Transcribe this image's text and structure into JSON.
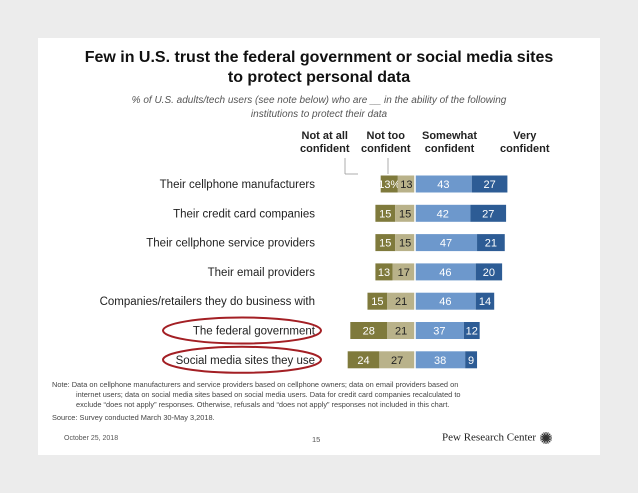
{
  "header": {
    "title_line1": "Few in U.S. trust the federal government or social media sites",
    "title_line2": "to protect personal data",
    "subtitle_line1": "% of U.S. adults/tech users (see note below) who are __ in the ability of the following",
    "subtitle_line2": "institutions to protect their data"
  },
  "columns": {
    "not_at_all_1": "Not at all",
    "not_at_all_2": "confident",
    "not_too_1": "Not too",
    "not_too_2": "confident",
    "somewhat_1": "Somewhat",
    "somewhat_2": "confident",
    "very_1": "Very",
    "very_2": "confident"
  },
  "chart_data": {
    "type": "bar",
    "orientation": "horizontal-diverging",
    "title": "Few in U.S. trust the federal government or social media sites to protect personal data",
    "categories": [
      "Their cellphone manufacturers",
      "Their credit card companies",
      "Their cellphone service providers",
      "Their email providers",
      "Companies/retailers they do business with",
      "The federal government",
      "Social media sites they use"
    ],
    "series": [
      {
        "name": "Not at all confident",
        "color": "#7f7a3c",
        "values": [
          13,
          15,
          15,
          13,
          15,
          28,
          24
        ],
        "labels": [
          "13%",
          "15",
          "15",
          "13",
          "15",
          "28",
          "24"
        ]
      },
      {
        "name": "Not too confident",
        "color": "#b9b28a",
        "values": [
          13,
          15,
          15,
          17,
          21,
          21,
          27
        ],
        "labels": [
          "13",
          "15",
          "15",
          "17",
          "21",
          "21",
          "27"
        ]
      },
      {
        "name": "Somewhat confident",
        "color": "#6d98cc",
        "values": [
          43,
          42,
          47,
          46,
          46,
          37,
          38
        ],
        "labels": [
          "43",
          "42",
          "47",
          "46",
          "46",
          "37",
          "38"
        ]
      },
      {
        "name": "Very confident",
        "color": "#2d5c95",
        "values": [
          27,
          27,
          21,
          20,
          14,
          12,
          9
        ],
        "labels": [
          "27",
          "27",
          "21",
          "20",
          "14",
          "12",
          "9"
        ]
      }
    ],
    "highlighted": [
      "The federal government",
      "Social media sites they use"
    ],
    "highlight_color": "#a31f24"
  },
  "notes": {
    "line1": "Note: Data on cellphone manufacturers and service providers based on cellphone owners; data on email providers based on",
    "line2": "internet users; data on social media sites based on social media users. Data for credit card companies recalculated to",
    "line3": "exclude “does not apply” responses. Otherwise, refusals and “does not apply” responses not included in this chart.",
    "source": "Source: Survey conducted March 30-May 3,2018."
  },
  "footer": {
    "date": "October 25, 2018",
    "page": "15",
    "brand": "Pew Research Center"
  }
}
